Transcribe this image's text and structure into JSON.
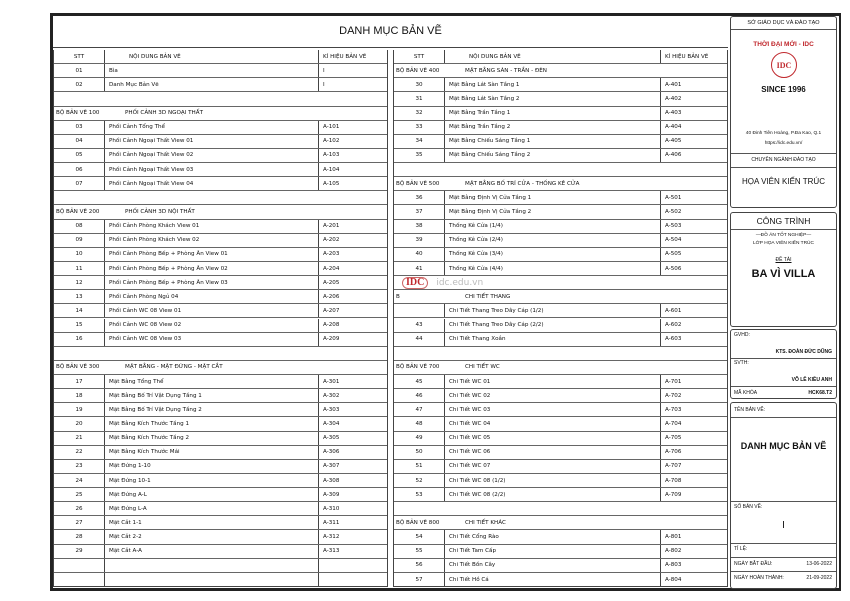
{
  "title": "DANH MỤC BẢN VẼ",
  "headers": {
    "stt": "STT",
    "content": "NỘI DUNG BẢN VẼ",
    "code": "KÍ HIỆU BẢN VẼ"
  },
  "left_rows": [
    {
      "t": "h"
    },
    {
      "t": "r",
      "stt": "01",
      "name": "Bìa",
      "code": "I"
    },
    {
      "t": "r",
      "stt": "02",
      "name": "Danh Mục Bản Vẽ",
      "code": "I"
    },
    {
      "t": "b"
    },
    {
      "t": "s",
      "set": "BỘ BẢN VẼ 100",
      "name": "PHỐI CẢNH 3D NGOẠI THẤT"
    },
    {
      "t": "r",
      "stt": "03",
      "name": "Phối Cảnh Tổng Thể",
      "code": "A-101"
    },
    {
      "t": "r",
      "stt": "04",
      "name": "Phối Cảnh Ngoại Thất View 01",
      "code": "A-102"
    },
    {
      "t": "r",
      "stt": "05",
      "name": "Phối Cảnh Ngoại Thất View 02",
      "code": "A-103"
    },
    {
      "t": "r",
      "stt": "06",
      "name": "Phối Cảnh Ngoại Thất View 03",
      "code": "A-104"
    },
    {
      "t": "r",
      "stt": "07",
      "name": "Phối Cảnh Ngoại Thất View 04",
      "code": "A-105"
    },
    {
      "t": "b"
    },
    {
      "t": "s",
      "set": "BỘ BẢN VẼ 200",
      "name": "PHỐI CẢNH 3D NỘI THẤT"
    },
    {
      "t": "r",
      "stt": "08",
      "name": "Phối Cảnh Phòng Khách View 01",
      "code": "A-201"
    },
    {
      "t": "r",
      "stt": "09",
      "name": "Phối Cảnh Phòng Khách View 02",
      "code": "A-202"
    },
    {
      "t": "r",
      "stt": "10",
      "name": "Phối Cảnh Phòng Bếp + Phòng Ăn View 01",
      "code": "A-203"
    },
    {
      "t": "r",
      "stt": "11",
      "name": "Phối Cảnh Phòng Bếp + Phòng Ăn View 02",
      "code": "A-204"
    },
    {
      "t": "r",
      "stt": "12",
      "name": "Phối Cảnh Phòng Bếp + Phòng Ăn View 03",
      "code": "A-205"
    },
    {
      "t": "r",
      "stt": "13",
      "name": "Phối Cảnh Phòng Ngủ 04",
      "code": "A-206"
    },
    {
      "t": "r",
      "stt": "14",
      "name": "Phối Cảnh WC 08 View 01",
      "code": "A-207"
    },
    {
      "t": "r",
      "stt": "15",
      "name": "Phối Cảnh WC 08 View 02",
      "code": "A-208"
    },
    {
      "t": "r",
      "stt": "16",
      "name": "Phối Cảnh WC 08 View 03",
      "code": "A-209"
    },
    {
      "t": "b"
    },
    {
      "t": "s",
      "set": "BỘ BẢN VẼ 300",
      "name": "MẶT BẰNG - MẶT ĐỨNG - MẶT CẮT"
    },
    {
      "t": "r",
      "stt": "17",
      "name": "Mặt Bằng Tổng Thể",
      "code": "A-301"
    },
    {
      "t": "r",
      "stt": "18",
      "name": "Mặt Bằng Bố Trí Vật Dụng Tầng 1",
      "code": "A-302"
    },
    {
      "t": "r",
      "stt": "19",
      "name": "Mặt Bằng Bố Trí Vật Dụng Tầng 2",
      "code": "A-303"
    },
    {
      "t": "r",
      "stt": "20",
      "name": "Mặt Bằng Kích Thước Tầng 1",
      "code": "A-304"
    },
    {
      "t": "r",
      "stt": "21",
      "name": "Mặt Bằng Kích Thước Tầng 2",
      "code": "A-305"
    },
    {
      "t": "r",
      "stt": "22",
      "name": "Mặt Bằng Kích Thước Mái",
      "code": "A-306"
    },
    {
      "t": "r",
      "stt": "23",
      "name": "Mặt Đứng 1-10",
      "code": "A-307"
    },
    {
      "t": "r",
      "stt": "24",
      "name": "Mặt Đứng 10-1",
      "code": "A-308"
    },
    {
      "t": "r",
      "stt": "25",
      "name": "Mặt Đứng A-L",
      "code": "A-309"
    },
    {
      "t": "r",
      "stt": "26",
      "name": "Mặt Đứng L-A",
      "code": "A-310"
    },
    {
      "t": "r",
      "stt": "27",
      "name": "Mặt Cắt 1-1",
      "code": "A-311"
    },
    {
      "t": "r",
      "stt": "28",
      "name": "Mặt Cắt 2-2",
      "code": "A-312"
    },
    {
      "t": "r",
      "stt": "29",
      "name": "Mặt Cắt A-A",
      "code": "A-313"
    },
    {
      "t": "r",
      "stt": "",
      "name": "",
      "code": ""
    },
    {
      "t": "r",
      "stt": "",
      "name": "",
      "code": ""
    }
  ],
  "right_rows": [
    {
      "t": "h"
    },
    {
      "t": "s",
      "set": "BỘ BẢN VẼ 400",
      "name": "MẶT BẰNG SÀN - TRẦN - ĐÈN"
    },
    {
      "t": "r",
      "stt": "30",
      "name": "Mặt Bằng Lát Sàn Tầng 1",
      "code": "A-401"
    },
    {
      "t": "r",
      "stt": "31",
      "name": "Mặt Bằng Lát Sàn Tầng 2",
      "code": "A-402"
    },
    {
      "t": "r",
      "stt": "32",
      "name": "Mặt Bằng Trần Tầng 1",
      "code": "A-403"
    },
    {
      "t": "r",
      "stt": "33",
      "name": "Mặt Bằng Trần Tầng 2",
      "code": "A-404"
    },
    {
      "t": "r",
      "stt": "34",
      "name": "Mặt Bằng Chiếu Sáng Tầng 1",
      "code": "A-405"
    },
    {
      "t": "r",
      "stt": "35",
      "name": "Mặt Bằng Chiếu Sáng Tầng 2",
      "code": "A-406"
    },
    {
      "t": "b"
    },
    {
      "t": "s",
      "set": "BỘ BẢN VẼ 500",
      "name": "MẶT BẰNG BỐ TRÍ CỬA - THỐNG KÊ CỬA"
    },
    {
      "t": "r",
      "stt": "36",
      "name": "Mặt Bằng Định Vị Cửa Tầng 1",
      "code": "A-501"
    },
    {
      "t": "r",
      "stt": "37",
      "name": "Mặt Bằng Định Vị Cửa Tầng 2",
      "code": "A-502"
    },
    {
      "t": "r",
      "stt": "38",
      "name": "Thống Kê Cửa (1/4)",
      "code": "A-503"
    },
    {
      "t": "r",
      "stt": "39",
      "name": "Thống Kê Cửa (2/4)",
      "code": "A-504"
    },
    {
      "t": "r",
      "stt": "40",
      "name": "Thống Kê Cửa (3/4)",
      "code": "A-505"
    },
    {
      "t": "r",
      "stt": "41",
      "name": "Thống Kê Cửa (4/4)",
      "code": "A-506"
    },
    {
      "t": "b"
    },
    {
      "t": "s",
      "set": "B",
      "name": "CHI TIẾT THANG"
    },
    {
      "t": "r",
      "stt": "",
      "name": "Chi Tiết Thang Treo Dây Cáp (1/2)",
      "code": "A-601"
    },
    {
      "t": "r",
      "stt": "43",
      "name": "Chi Tiết Thang Treo Dây Cáp (2/2)",
      "code": "A-602"
    },
    {
      "t": "r",
      "stt": "44",
      "name": "Chi Tiết Thang Xoắn",
      "code": "A-603"
    },
    {
      "t": "b"
    },
    {
      "t": "s",
      "set": "BỘ BẢN VẼ 700",
      "name": "CHI TIẾT WC"
    },
    {
      "t": "r",
      "stt": "45",
      "name": "Chi Tiết WC 01",
      "code": "A-701"
    },
    {
      "t": "r",
      "stt": "46",
      "name": "Chi Tiết WC 02",
      "code": "A-702"
    },
    {
      "t": "r",
      "stt": "47",
      "name": "Chi Tiết WC 03",
      "code": "A-703"
    },
    {
      "t": "r",
      "stt": "48",
      "name": "Chi Tiết WC 04",
      "code": "A-704"
    },
    {
      "t": "r",
      "stt": "49",
      "name": "Chi Tiết WC 05",
      "code": "A-705"
    },
    {
      "t": "r",
      "stt": "50",
      "name": "Chi Tiết WC 06",
      "code": "A-706"
    },
    {
      "t": "r",
      "stt": "51",
      "name": "Chi Tiết WC 07",
      "code": "A-707"
    },
    {
      "t": "r",
      "stt": "52",
      "name": "Chi Tiết WC 08 (1/2)",
      "code": "A-708"
    },
    {
      "t": "r",
      "stt": "53",
      "name": "Chi Tiết WC 08 (2/2)",
      "code": "A-709"
    },
    {
      "t": "b"
    },
    {
      "t": "s",
      "set": "BỘ BẢN VẼ 800",
      "name": "CHI TIẾT KHÁC"
    },
    {
      "t": "r",
      "stt": "54",
      "name": "Chi Tiết Cổng Rào",
      "code": "A-801"
    },
    {
      "t": "r",
      "stt": "55",
      "name": "Chi Tiết Tam Cấp",
      "code": "A-802"
    },
    {
      "t": "r",
      "stt": "56",
      "name": "Chi Tiết Bồn Cây",
      "code": "A-803"
    },
    {
      "t": "r",
      "stt": "57",
      "name": "Chi Tiết Hồ Cá",
      "code": "A-804"
    }
  ],
  "watermark": {
    "logo": "IDC",
    "url": "idc.edu.vn"
  },
  "title_block": {
    "department": "SỞ GIÁO DỤC VÀ ĐÀO TẠO",
    "school": "THỜI ĐẠI MỚI - IDC",
    "logo_text": "IDC",
    "since": "SINCE 1996",
    "address": "40 Đinh Tiên Hoàng, P.Đa Kao, Q.1",
    "website": "https://idc.edu.vn/",
    "major_label": "CHUYÊN NGÀNH ĐÀO TẠO",
    "major": "HỌA VIÊN KIẾN TRÚC",
    "project_label": "CÔNG TRÌNH",
    "thesis": "—ĐỒ ÁN TỐT NGHIỆP—",
    "class": "LỚP HỌA VIÊN KIẾN TRÚC",
    "topic_label": "ĐỀ TÀI",
    "topic": "BA VÌ VILLA",
    "advisor_label": "GVHD:",
    "advisor": "KTS. ĐOÀN ĐỨC DŨNG",
    "student_label": "SVTH:",
    "student": "VÕ LÊ KIỀU ANH",
    "course_label": "MÃ KHÓA",
    "course": "HCK68.T2",
    "drawing_name_label": "TÊN BẢN VẼ:",
    "drawing_name": "DANH MỤC BẢN VẼ",
    "drawing_no_label": "SỐ BẢN VẼ:",
    "drawing_no": "I",
    "scale_label": "TỈ LỆ:",
    "start_label": "NGÀY BẮT ĐẦU:",
    "start_date": "13-06-2022",
    "end_label": "NGÀY HOÀN THÀNH:",
    "end_date": "21-09-2022"
  },
  "colors": {
    "brand_red": "#c0282d"
  }
}
